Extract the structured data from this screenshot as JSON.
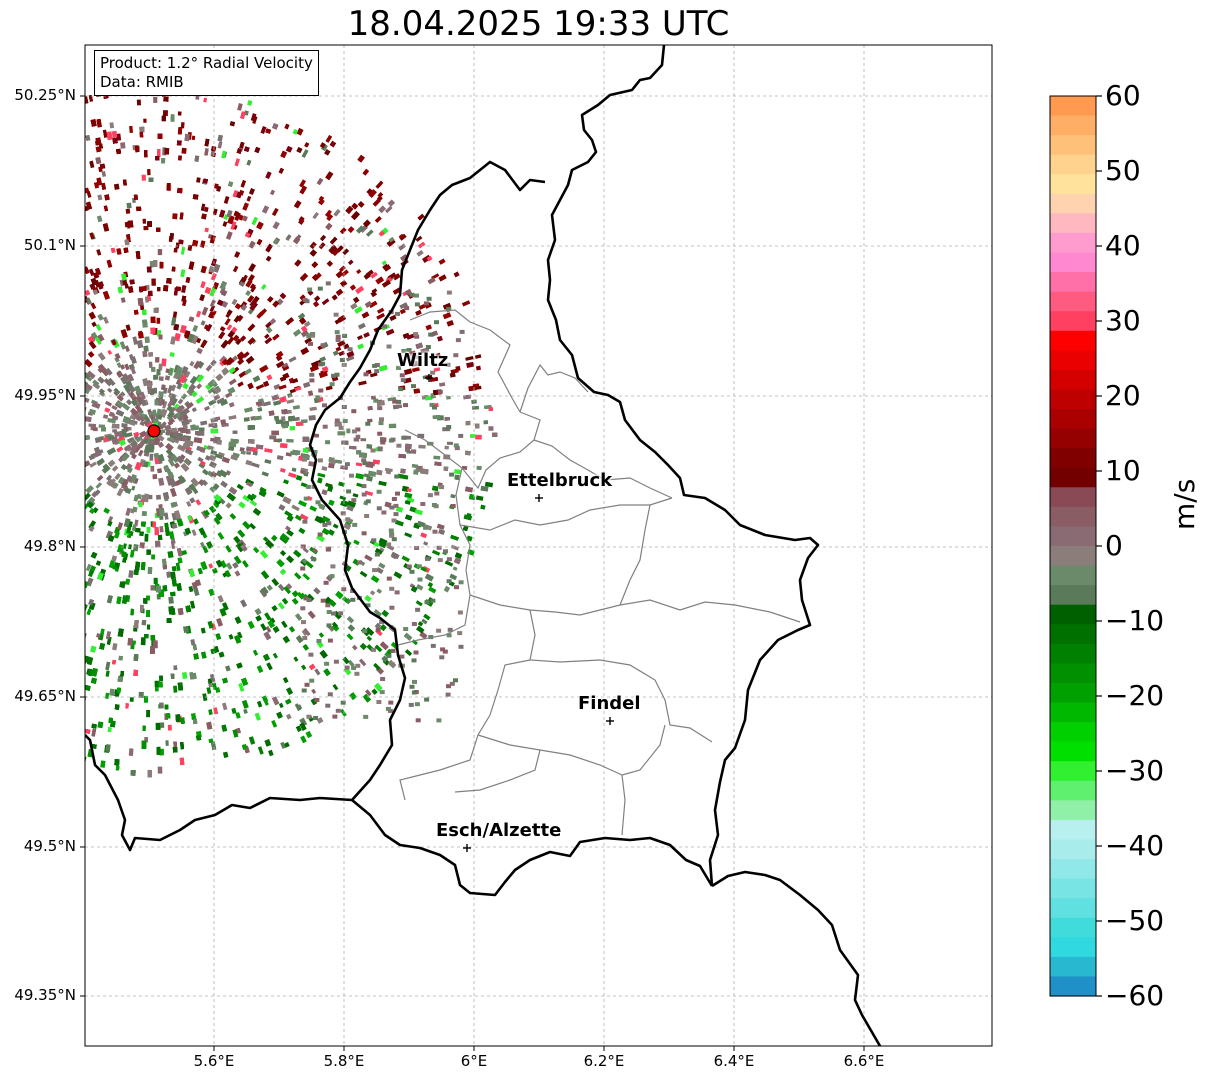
{
  "title": "18.04.2025 19:33 UTC",
  "info": {
    "product": "Product: 1.2° Radial Velocity",
    "data_source": "Data: RMIB"
  },
  "map": {
    "lat_labels": [
      "50.25°N",
      "50.1°N",
      "49.95°N",
      "49.8°N",
      "49.65°N",
      "49.5°N",
      "49.35°N"
    ],
    "lon_labels": [
      "5.6°E",
      "5.8°E",
      "6°E",
      "6.2°E",
      "6.4°E",
      "6.6°E"
    ],
    "grid": "dashed",
    "cities": [
      {
        "name": "Wiltz"
      },
      {
        "name": "Ettelbruck"
      },
      {
        "name": "Findel"
      },
      {
        "name": "Esch/Alzette"
      }
    ],
    "radar_site_marker": "red circle",
    "colors": {
      "outward": "#7a0000",
      "inward": "#008000",
      "near_zero": "#8a7070",
      "border": "#000000",
      "cantons": "#808080"
    }
  },
  "colorbar": {
    "label": "m/s",
    "ticks": [
      "60",
      "50",
      "40",
      "30",
      "20",
      "10",
      "0",
      "−10",
      "−20",
      "−30",
      "−40",
      "−50",
      "−60"
    ],
    "range": [
      -60,
      60
    ],
    "colors_top_to_bottom": [
      "#ff9a50",
      "#ffae66",
      "#ffc07a",
      "#ffd28e",
      "#ffe29c",
      "#ffd3b0",
      "#ffb8c0",
      "#ff9ccf",
      "#ff88d0",
      "#ff6fa8",
      "#ff5a80",
      "#ff4060",
      "#ff0000",
      "#ea0000",
      "#d40000",
      "#bf0000",
      "#aa0000",
      "#950000",
      "#800000",
      "#730000",
      "#8a4a55",
      "#8a5c64",
      "#8a6b73",
      "#8a7d7a",
      "#6a8a6a",
      "#5a7a5a",
      "#006000",
      "#007000",
      "#008000",
      "#009000",
      "#00a000",
      "#00b800",
      "#00d000",
      "#00e000",
      "#30f030",
      "#60f070",
      "#90f0a8",
      "#b8f0f0",
      "#a8ecec",
      "#90e8e8",
      "#78e4e4",
      "#60e0e0",
      "#40dcdc",
      "#30d8e0",
      "#28b8d0",
      "#2090c8"
    ]
  }
}
